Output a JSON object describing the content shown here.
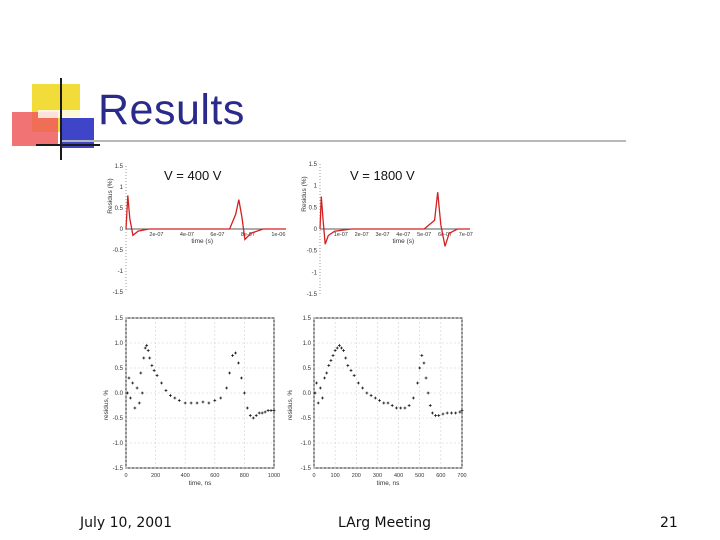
{
  "slide": {
    "title": "Results",
    "labels": {
      "left_voltage": "V = 400 V",
      "right_voltage": "V = 1800 V"
    },
    "footer": {
      "date": "July 10, 2001",
      "center": "LArg Meeting",
      "page": "21"
    },
    "colors": {
      "title": "#2a2a8a",
      "deco_yellow": "#f2dc3a",
      "deco_red": "#e83a3a",
      "deco_blue": "#3f45c9",
      "curve_red": "#d42020"
    }
  },
  "chart_data": [
    {
      "type": "line",
      "name": "top-left",
      "ylabel": "Residus (%)",
      "xlabel": "time (s)",
      "yticks": [
        "1.5",
        "1",
        "0.5",
        "0",
        "-0.5",
        "-1",
        "-1.5"
      ],
      "xticks": [
        "2e-07",
        "4e-07",
        "6e-07",
        "8e-07",
        "1e-06"
      ],
      "ylim": [
        -1.5,
        1.5
      ],
      "xlim": [
        0,
        1.05e-06
      ],
      "series": [
        {
          "x": [
            0,
            1.2e-08,
            2.5e-08,
            4.5e-08,
            8e-08,
            1.5e-07,
            3e-07,
            5e-07,
            6.8e-07,
            7.2e-07,
            7.4e-07,
            7.6e-07,
            7.8e-07,
            8.2e-07,
            9e-07,
            1.05e-06
          ],
          "y": [
            0,
            0.8,
            0.25,
            -0.15,
            -0.05,
            0,
            0,
            0,
            0,
            0.35,
            0.7,
            0.3,
            -0.25,
            -0.1,
            0,
            0
          ]
        }
      ]
    },
    {
      "type": "line",
      "name": "top-right",
      "ylabel": "Residus (%)",
      "xlabel": "time (s)",
      "yticks": [
        "1.5",
        "1",
        "0.5",
        "0",
        "-0.5",
        "-1",
        "-1.5"
      ],
      "xticks": [
        "1e-07",
        "2e-07",
        "3e-07",
        "4e-07",
        "5e-07",
        "6e-07",
        "7e-07"
      ],
      "ylim": [
        -1.5,
        1.5
      ],
      "xlim": [
        0,
        7.2e-07
      ],
      "series": [
        {
          "x": [
            0,
            6e-09,
            1.5e-08,
            2.5e-08,
            4e-08,
            7e-08,
            1.5e-07,
            3e-07,
            5e-07,
            5.5e-07,
            5.65e-07,
            5.8e-07,
            6e-07,
            6.2e-07,
            6.6e-07,
            7.2e-07
          ],
          "y": [
            0,
            0.75,
            0.2,
            -0.35,
            -0.15,
            -0.05,
            0,
            0,
            0,
            0.2,
            0.85,
            0.1,
            -0.4,
            -0.1,
            0,
            0
          ]
        }
      ]
    },
    {
      "type": "scatter",
      "name": "bottom-left",
      "ylabel": "residus, %",
      "xlabel": "time, ns",
      "yticks": [
        "1.5",
        "1.0",
        "0.5",
        "0.0",
        "-0.5",
        "-1.0",
        "-1.5"
      ],
      "xticks": [
        "0",
        "200",
        "400",
        "600",
        "800",
        "1000"
      ],
      "ylim": [
        -1.5,
        1.5
      ],
      "xlim": [
        0,
        1000
      ],
      "series": [
        {
          "x": [
            10,
            20,
            30,
            45,
            60,
            75,
            90,
            100,
            110,
            120,
            130,
            140,
            150,
            160,
            175,
            190,
            210,
            240,
            270,
            300,
            330,
            360,
            400,
            440,
            480,
            520,
            560,
            600,
            640,
            680,
            700,
            720,
            740,
            760,
            780,
            800,
            820,
            840,
            860,
            880,
            900,
            920,
            940,
            960,
            980,
            1000
          ],
          "y": [
            0.0,
            0.3,
            -0.1,
            0.2,
            -0.3,
            0.1,
            -0.2,
            0.4,
            0.0,
            0.7,
            0.9,
            0.95,
            0.85,
            0.7,
            0.55,
            0.45,
            0.35,
            0.2,
            0.05,
            -0.05,
            -0.1,
            -0.15,
            -0.2,
            -0.2,
            -0.2,
            -0.18,
            -0.2,
            -0.15,
            -0.1,
            0.1,
            0.4,
            0.75,
            0.8,
            0.6,
            0.3,
            0.0,
            -0.3,
            -0.45,
            -0.5,
            -0.45,
            -0.4,
            -0.4,
            -0.38,
            -0.35,
            -0.35,
            -0.35
          ]
        }
      ]
    },
    {
      "type": "scatter",
      "name": "bottom-right",
      "ylabel": "residus, %",
      "xlabel": "time, ns",
      "yticks": [
        "1.5",
        "1.0",
        "0.5",
        "0.0",
        "-0.5",
        "-1.0",
        "-1.5"
      ],
      "xticks": [
        "0",
        "100",
        "200",
        "300",
        "400",
        "500",
        "600",
        "700"
      ],
      "ylim": [
        -1.5,
        1.5
      ],
      "xlim": [
        0,
        700
      ],
      "series": [
        {
          "x": [
            5,
            12,
            20,
            30,
            40,
            50,
            60,
            70,
            80,
            90,
            100,
            110,
            120,
            130,
            140,
            150,
            160,
            175,
            190,
            210,
            230,
            250,
            270,
            290,
            310,
            330,
            350,
            370,
            390,
            410,
            430,
            450,
            470,
            490,
            500,
            510,
            520,
            530,
            540,
            550,
            560,
            575,
            590,
            610,
            630,
            650,
            670,
            690,
            700
          ],
          "y": [
            0.0,
            0.2,
            -0.2,
            0.1,
            -0.1,
            0.3,
            0.4,
            0.55,
            0.65,
            0.75,
            0.85,
            0.9,
            0.95,
            0.9,
            0.85,
            0.7,
            0.55,
            0.45,
            0.35,
            0.2,
            0.1,
            0.0,
            -0.05,
            -0.1,
            -0.15,
            -0.2,
            -0.2,
            -0.25,
            -0.3,
            -0.3,
            -0.3,
            -0.25,
            -0.1,
            0.2,
            0.5,
            0.75,
            0.6,
            0.3,
            0.0,
            -0.25,
            -0.4,
            -0.45,
            -0.45,
            -0.42,
            -0.4,
            -0.4,
            -0.4,
            -0.38,
            -0.35
          ]
        }
      ]
    }
  ]
}
